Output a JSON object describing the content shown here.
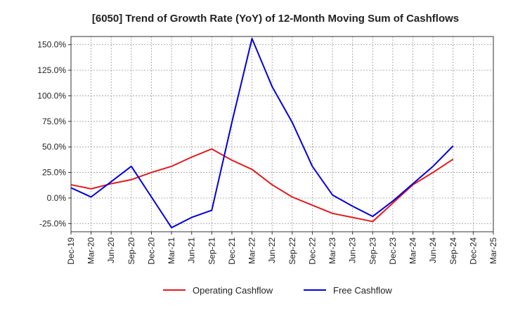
{
  "chart_data": {
    "type": "line",
    "title": "[6050]  Trend of Growth Rate (YoY) of 12-Month Moving Sum of Cashflows",
    "xlabel": "",
    "ylabel": "",
    "categories": [
      "Dec-19",
      "Mar-20",
      "Jun-20",
      "Sep-20",
      "Dec-20",
      "Mar-21",
      "Jun-21",
      "Sep-21",
      "Dec-21",
      "Mar-22",
      "Jun-22",
      "Sep-22",
      "Dec-22",
      "Mar-23",
      "Jun-23",
      "Sep-23",
      "Dec-23",
      "Mar-24",
      "Jun-24",
      "Sep-24",
      "Dec-24",
      "Mar-25"
    ],
    "y_ticks": [
      "150.0%",
      "125.0%",
      "100.0%",
      "75.0%",
      "50.0%",
      "25.0%",
      "0.0%",
      "-25.0%"
    ],
    "y_tick_values": [
      150,
      125,
      100,
      75,
      50,
      25,
      0,
      -25
    ],
    "ylim": [
      -33,
      158
    ],
    "grid": true,
    "legend_position": "bottom",
    "series": [
      {
        "name": "Operating Cashflow",
        "color": "#e31a1c",
        "points": [
          {
            "x": "Dec-19",
            "y": 13
          },
          {
            "x": "Mar-20",
            "y": 9
          },
          {
            "x": "Jun-20",
            "y": 14
          },
          {
            "x": "Sep-20",
            "y": 18
          },
          {
            "x": "Dec-20",
            "y": 25
          },
          {
            "x": "Mar-21",
            "y": 31
          },
          {
            "x": "Jun-21",
            "y": 40
          },
          {
            "x": "Sep-21",
            "y": 48
          },
          {
            "x": "Dec-21",
            "y": 37
          },
          {
            "x": "Mar-22",
            "y": 28
          },
          {
            "x": "Jun-22",
            "y": 13
          },
          {
            "x": "Sep-22",
            "y": 1
          },
          {
            "x": "Dec-22",
            "y": -7
          },
          {
            "x": "Mar-23",
            "y": -15
          },
          {
            "x": "Jun-23",
            "y": -19
          },
          {
            "x": "Sep-23",
            "y": -23
          },
          {
            "x": "Dec-23",
            "y": -5
          },
          {
            "x": "Mar-24",
            "y": 13
          },
          {
            "x": "Jun-24",
            "y": 25
          },
          {
            "x": "Sep-24",
            "y": 38
          }
        ]
      },
      {
        "name": "Free Cashflow",
        "color": "#0000dd",
        "points": [
          {
            "x": "Dec-19",
            "y": 10
          },
          {
            "x": "Mar-20",
            "y": 1
          },
          {
            "x": "Jun-20",
            "y": 16
          },
          {
            "x": "Sep-20",
            "y": 31
          },
          {
            "x": "Dec-20",
            "y": 1
          },
          {
            "x": "Mar-21",
            "y": -29
          },
          {
            "x": "Jun-21",
            "y": -19
          },
          {
            "x": "Sep-21",
            "y": -12
          },
          {
            "x": "Dec-21",
            "y": 74
          },
          {
            "x": "Mar-22",
            "y": 156
          },
          {
            "x": "Jun-22",
            "y": 109
          },
          {
            "x": "Sep-22",
            "y": 74
          },
          {
            "x": "Dec-22",
            "y": 31
          },
          {
            "x": "Mar-23",
            "y": 3
          },
          {
            "x": "Jun-23",
            "y": -8
          },
          {
            "x": "Sep-23",
            "y": -18
          },
          {
            "x": "Dec-23",
            "y": -3
          },
          {
            "x": "Mar-24",
            "y": 14
          },
          {
            "x": "Jun-24",
            "y": 31
          },
          {
            "x": "Sep-24",
            "y": 51
          }
        ]
      }
    ]
  }
}
